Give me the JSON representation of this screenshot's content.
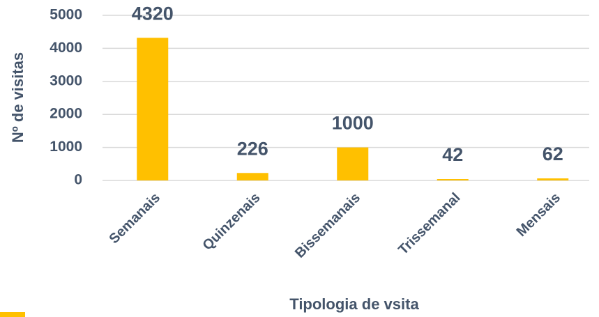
{
  "chart_data": {
    "type": "bar",
    "categories": [
      "Semanais",
      "Quinzenais",
      "Bissemanais",
      "Trissemanal",
      "Mensais"
    ],
    "values": [
      4320,
      226,
      1000,
      42,
      62
    ],
    "color": "#ffc000",
    "xlabel": "Tipologia de vsita",
    "ylabel": "Nº de visitas",
    "ylim": [
      0,
      5000
    ],
    "yticks": [
      0,
      1000,
      2000,
      3000,
      4000,
      5000
    ],
    "grid": true
  }
}
